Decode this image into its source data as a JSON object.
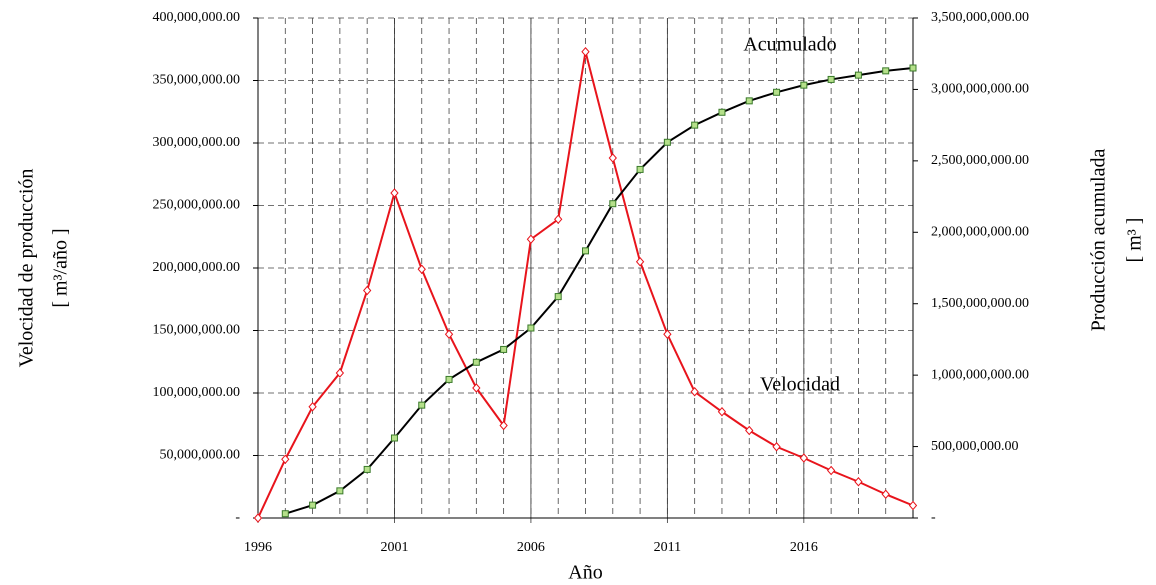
{
  "chart_data": {
    "type": "line",
    "xlabel": "Año",
    "ylabel": [
      "Velocidad de producción",
      "[ m³/año ]"
    ],
    "y2label": [
      "Producción acumulada",
      "[ m³ ]"
    ],
    "x": [
      1996,
      1997,
      1998,
      1999,
      2000,
      2001,
      2002,
      2003,
      2004,
      2005,
      2006,
      2007,
      2008,
      2009,
      2010,
      2011,
      2012,
      2013,
      2014,
      2015,
      2016,
      2017,
      2018,
      2019,
      2020
    ],
    "xlim": [
      1996,
      2020
    ],
    "xticks": [
      1996,
      2001,
      2006,
      2011,
      2016
    ],
    "ylim": [
      0,
      400000000
    ],
    "yticks": [
      {
        "value": 0,
        "label": "-"
      },
      {
        "value": 50000000,
        "label": "50,000,000.00"
      },
      {
        "value": 100000000,
        "label": "100,000,000.00"
      },
      {
        "value": 150000000,
        "label": "150,000,000.00"
      },
      {
        "value": 200000000,
        "label": "200,000,000.00"
      },
      {
        "value": 250000000,
        "label": "250,000,000.00"
      },
      {
        "value": 300000000,
        "label": "300,000,000.00"
      },
      {
        "value": 350000000,
        "label": "350,000,000.00"
      },
      {
        "value": 400000000,
        "label": "400,000,000.00"
      }
    ],
    "y2lim": [
      0,
      3500000000
    ],
    "y2ticks": [
      {
        "value": 0,
        "label": "-"
      },
      {
        "value": 500000000,
        "label": "500,000,000.00"
      },
      {
        "value": 1000000000,
        "label": "1,000,000,000.00"
      },
      {
        "value": 1500000000,
        "label": "1,500,000,000.00"
      },
      {
        "value": 2000000000,
        "label": "2,000,000,000.00"
      },
      {
        "value": 2500000000,
        "label": "2,500,000,000.00"
      },
      {
        "value": 3000000000,
        "label": "3,000,000,000.00"
      },
      {
        "value": 3500000000,
        "label": "3,500,000,000.00"
      }
    ],
    "grid": true,
    "series": [
      {
        "name": "Velocidad",
        "color": "#e8141c",
        "marker": "diamond",
        "marker_fill": "#ffffff",
        "axis": "y",
        "values": [
          0,
          47000000,
          89000000,
          116000000,
          182000000,
          260000000,
          199000000,
          147000000,
          104000000,
          74000000,
          223000000,
          239000000,
          373000000,
          288000000,
          205000000,
          147000000,
          101000000,
          85000000,
          70000000,
          57000000,
          48000000,
          38000000,
          29000000,
          19000000,
          10000000
        ]
      },
      {
        "name": "Acumulado",
        "color": "#000000",
        "marker": "square",
        "marker_fill": "#b5e08a",
        "marker_stroke": "#3a7a2a",
        "axis": "y2",
        "values": [
          null,
          30000000,
          90000000,
          190000000,
          340000000,
          560000000,
          790000000,
          970000000,
          1090000000,
          1180000000,
          1330000000,
          1550000000,
          1870000000,
          2200000000,
          2440000000,
          2630000000,
          2750000000,
          2840000000,
          2920000000,
          2980000000,
          3030000000,
          3070000000,
          3100000000,
          3130000000,
          3150000000
        ]
      }
    ]
  }
}
